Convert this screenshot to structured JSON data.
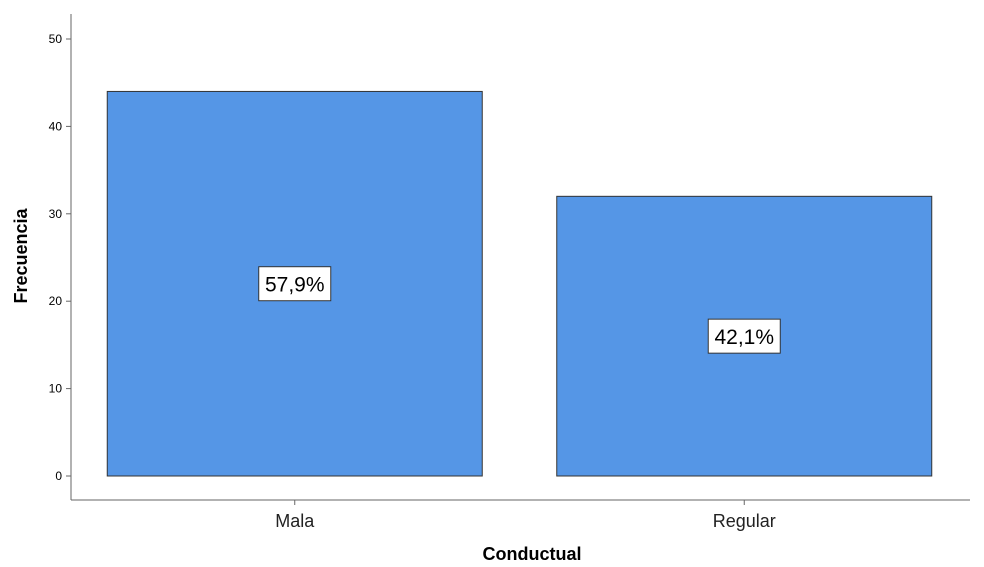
{
  "chart_data": {
    "type": "bar",
    "title": "",
    "xlabel": "Conductual",
    "ylabel": "Frecuencia",
    "categories": [
      "Mala",
      "Regular"
    ],
    "values": [
      44,
      32
    ],
    "data_labels": [
      "57,9%",
      "42,1%"
    ],
    "ylim": [
      0,
      50
    ],
    "yticks": [
      0,
      10,
      20,
      30,
      40,
      50
    ],
    "grid": false,
    "bar_color": "#5596E6",
    "bar_edge_color": "#333333"
  }
}
